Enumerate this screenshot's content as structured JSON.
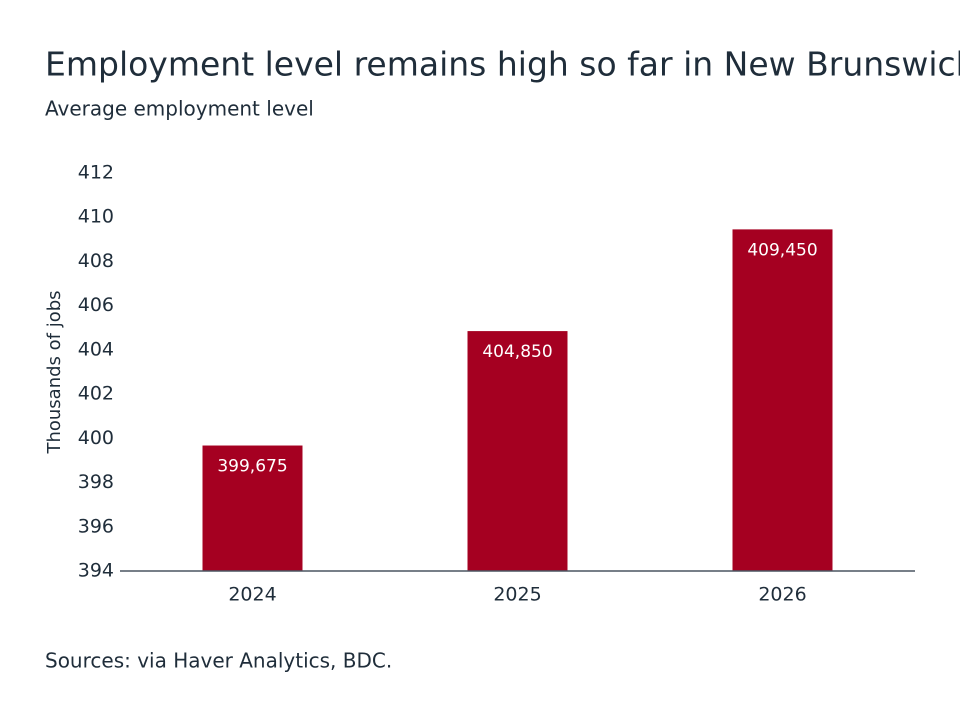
{
  "chart_data": {
    "type": "bar",
    "title": "Employment level remains high so far in New Brunswick",
    "subtitle": "Average employment level",
    "ylabel": "Thousands of jobs",
    "source": "Sources: via Haver Analytics, BDC.",
    "categories": [
      "2024",
      "2025",
      "2026"
    ],
    "values": [
      399.675,
      404.85,
      409.45
    ],
    "value_labels": [
      "399,675",
      "404,850",
      "409,450"
    ],
    "color": "#a50021",
    "ylim": [
      394,
      412
    ],
    "yticks": [
      394,
      396,
      398,
      400,
      402,
      404,
      406,
      408,
      410,
      412
    ],
    "grid": false
  }
}
